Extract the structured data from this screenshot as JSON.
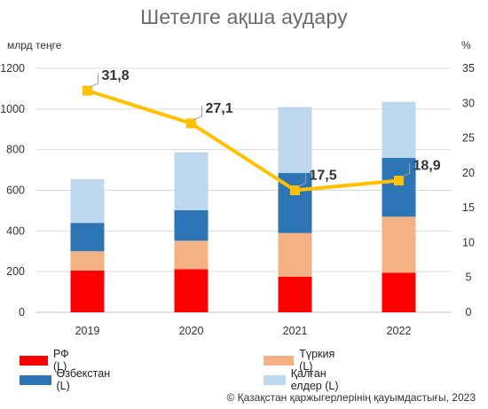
{
  "title": "Шетелге ақша аудару",
  "left_axis_unit": "млрд теңге",
  "right_axis_unit": "%",
  "credit": "© Қазақстан қаржыгерлерінің қауымдастығы, 2023",
  "colors": {
    "rf": "#ff0000",
    "turkey": "#f4b183",
    "uzbekistan": "#2e75b6",
    "others": "#bdd7ee",
    "line": "#ffc000",
    "grid": "#d9d9d9",
    "axis_text": "#333333"
  },
  "chart_data": {
    "type": "bar",
    "stacked": true,
    "categories": [
      "2019",
      "2020",
      "2021",
      "2022"
    ],
    "series": [
      {
        "name": "РФ (L)",
        "key": "rf",
        "axis": "left",
        "values": [
          205,
          212,
          175,
          195
        ]
      },
      {
        "name": "Түркия (L)",
        "key": "turkey",
        "axis": "left",
        "values": [
          95,
          140,
          215,
          275
        ]
      },
      {
        "name": "Өзбекстан (L)",
        "key": "uzbekistan",
        "axis": "left",
        "values": [
          140,
          150,
          295,
          290
        ]
      },
      {
        "name": "Қалған елдер (L)",
        "key": "others",
        "axis": "left",
        "values": [
          215,
          285,
          325,
          275
        ]
      }
    ],
    "line_series": {
      "axis": "right",
      "values": [
        31.8,
        27.1,
        17.5,
        18.9
      ],
      "labels": [
        "31,8",
        "27,1",
        "17,5",
        "18,9"
      ]
    },
    "left_axis": {
      "min": 0,
      "max": 1200,
      "ticks": [
        0,
        200,
        400,
        600,
        800,
        1000,
        1200
      ]
    },
    "right_axis": {
      "min": 0,
      "max": 35,
      "ticks": [
        0,
        5,
        10,
        15,
        20,
        25,
        30,
        35
      ]
    },
    "grid": true,
    "legend_position": "bottom"
  }
}
